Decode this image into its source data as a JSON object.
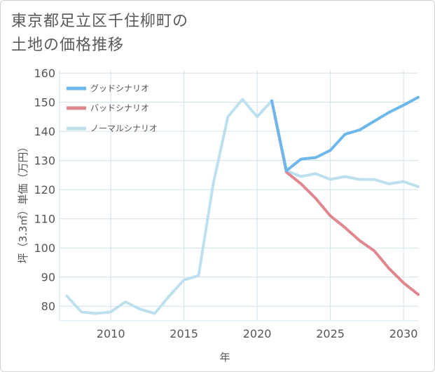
{
  "title": {
    "line1": "東京都足立区千住柳町の",
    "line2": "土地の価格推移"
  },
  "chart_data": {
    "type": "line",
    "xlabel": "年",
    "ylabel": "坪（3.3㎡）単価（万円）",
    "xlim": [
      2006.5,
      2031
    ],
    "ylim": [
      75,
      161
    ],
    "xticks": [
      2010,
      2015,
      2020,
      2025,
      2030
    ],
    "yticks": [
      80,
      90,
      100,
      110,
      120,
      130,
      140,
      150,
      160
    ],
    "grid": true,
    "legend_position": "top-left",
    "series": [
      {
        "name": "グッドシナリオ",
        "color": "#6cb8ec",
        "x": [
          2021,
          2022,
          2023,
          2024,
          2025,
          2026,
          2027,
          2028,
          2029,
          2030,
          2031
        ],
        "values": [
          150.5,
          126.5,
          130.5,
          131,
          133.5,
          139,
          140.5,
          143.5,
          146.5,
          149,
          151.7
        ]
      },
      {
        "name": "バッドシナリオ",
        "color": "#e0868f",
        "x": [
          2021,
          2022,
          2023,
          2024,
          2025,
          2026,
          2027,
          2028,
          2029,
          2030,
          2031
        ],
        "values": [
          150.5,
          126,
          122,
          117,
          111,
          107,
          102.5,
          99,
          93,
          88,
          84
        ]
      },
      {
        "name": "ノーマルシナリオ",
        "color": "#bde0ee",
        "x": [
          2007,
          2008,
          2009,
          2010,
          2011,
          2012,
          2013,
          2014,
          2015,
          2016,
          2017,
          2018,
          2019,
          2020,
          2021,
          2022,
          2023,
          2024,
          2025,
          2026,
          2027,
          2028,
          2029,
          2030,
          2031
        ],
        "values": [
          83.5,
          78,
          77.5,
          78,
          81.5,
          79,
          77.5,
          83.5,
          89,
          90.5,
          122,
          145,
          151,
          145,
          150.5,
          126.5,
          124.5,
          125.5,
          123.5,
          124.5,
          123.5,
          123.5,
          122,
          122.8,
          121
        ]
      }
    ]
  }
}
